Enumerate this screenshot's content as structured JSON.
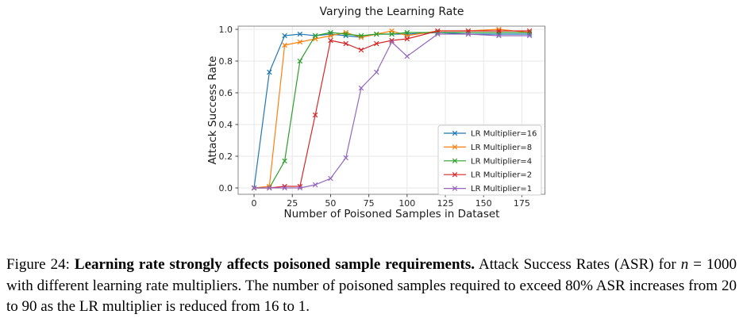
{
  "chart_data": {
    "type": "line",
    "title": "Varying the Learning Rate",
    "xlabel": "Number of Poisoned Samples in Dataset",
    "ylabel": "Attack Success Rate",
    "x": [
      0,
      10,
      20,
      30,
      40,
      50,
      60,
      70,
      80,
      90,
      100,
      120,
      140,
      160,
      180
    ],
    "series": [
      {
        "name": "LR Multiplier=16",
        "color": "#1f77b4",
        "values": [
          0.0,
          0.73,
          0.96,
          0.97,
          0.96,
          0.97,
          0.96,
          0.95,
          0.97,
          0.97,
          0.97,
          0.98,
          0.97,
          0.97,
          0.97
        ]
      },
      {
        "name": "LR Multiplier=8",
        "color": "#ff7f0e",
        "values": [
          0.0,
          0.01,
          0.9,
          0.92,
          0.94,
          0.96,
          0.98,
          0.95,
          0.97,
          0.99,
          0.96,
          0.99,
          0.99,
          1.0,
          0.98
        ]
      },
      {
        "name": "LR Multiplier=4",
        "color": "#2ca02c",
        "values": [
          0.0,
          0.0,
          0.17,
          0.8,
          0.96,
          0.98,
          0.97,
          0.96,
          0.97,
          0.97,
          0.98,
          0.98,
          0.98,
          0.98,
          0.98
        ]
      },
      {
        "name": "LR Multiplier=2",
        "color": "#d62728",
        "values": [
          0.0,
          0.0,
          0.01,
          0.01,
          0.46,
          0.93,
          0.91,
          0.87,
          0.91,
          0.93,
          0.94,
          0.99,
          0.99,
          0.99,
          0.99
        ]
      },
      {
        "name": "LR Multiplier=1",
        "color": "#9467bd",
        "values": [
          0.0,
          0.0,
          0.0,
          0.0,
          0.02,
          0.06,
          0.19,
          0.63,
          0.73,
          0.92,
          0.83,
          0.97,
          0.97,
          0.96,
          0.96
        ]
      }
    ],
    "xlim": [
      -10.4,
      190.1
    ],
    "ylim": [
      -0.04,
      1.02
    ],
    "xticks": [
      "0",
      "25",
      "50",
      "75",
      "100",
      "125",
      "150",
      "175"
    ],
    "yticks": [
      "0.0",
      "0.2",
      "0.4",
      "0.6",
      "0.8",
      "1.0"
    ],
    "grid": true,
    "marker": "x",
    "legend_position": "lower right",
    "colors": {
      "grid": "#e7e7e7",
      "spine": "#8a8a8a",
      "tick_text": "#262626",
      "legend_border": "#cccccc",
      "legend_bg": "#ffffff"
    }
  },
  "caption": {
    "segments": [
      {
        "text": "Figure 24: ",
        "style": "normal"
      },
      {
        "text": "Learning rate strongly affects poisoned sample requirements.",
        "style": "bold"
      },
      {
        "text": " Attack Success Rates (ASR) for ",
        "style": "normal"
      },
      {
        "text": "n",
        "style": "italic"
      },
      {
        "text": " = 1000 with different learning rate multipliers.  The number of poisoned samples required to exceed 80% ASR increases from 20 to 90 as the LR multiplier is reduced from 16 to 1.",
        "style": "normal"
      }
    ]
  }
}
